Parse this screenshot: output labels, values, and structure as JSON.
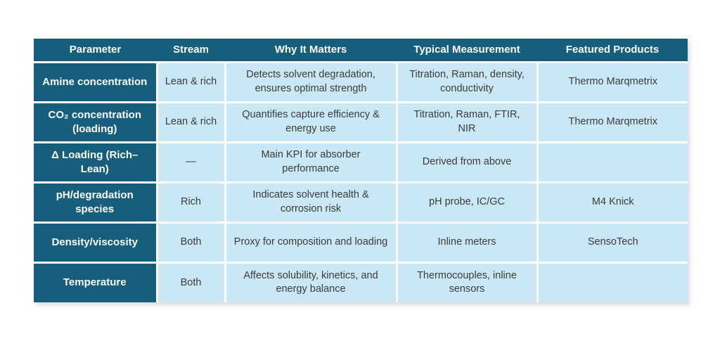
{
  "colors": {
    "header_bg": "#175E7D",
    "cell_bg": "#CAE7F5",
    "header_text": "#FFFFFF",
    "body_text": "#3B3B3B"
  },
  "table": {
    "columns": [
      "Parameter",
      "Stream",
      "Why It Matters",
      "Typical Measurement",
      "Featured Products"
    ],
    "rows": [
      {
        "parameter": "Amine concentration",
        "stream": "Lean & rich",
        "why": "Detects solvent degradation, ensures optimal strength",
        "measurement": "Titration, Raman, density, conductivity",
        "products": "Thermo Marqmetrix"
      },
      {
        "parameter": "CO₂ concentration (loading)",
        "stream": "Lean & rich",
        "why": "Quantifies capture efficiency & energy use",
        "measurement": "Titration, Raman, FTIR, NIR",
        "products": "Thermo Marqmetrix"
      },
      {
        "parameter": "Δ Loading (Rich–Lean)",
        "stream": "—",
        "why": "Main KPI for absorber performance",
        "measurement": "Derived from above",
        "products": ""
      },
      {
        "parameter": "pH/degradation species",
        "stream": "Rich",
        "why": "Indicates solvent health & corrosion risk",
        "measurement": "pH probe, IC/GC",
        "products": "M4 Knick"
      },
      {
        "parameter": "Density/viscosity",
        "stream": "Both",
        "why": "Proxy for composition and loading",
        "measurement": "Inline meters",
        "products": "SensoTech"
      },
      {
        "parameter": "Temperature",
        "stream": "Both",
        "why": "Affects solubility, kinetics, and energy balance",
        "measurement": "Thermocouples, inline sensors",
        "products": ""
      }
    ]
  }
}
